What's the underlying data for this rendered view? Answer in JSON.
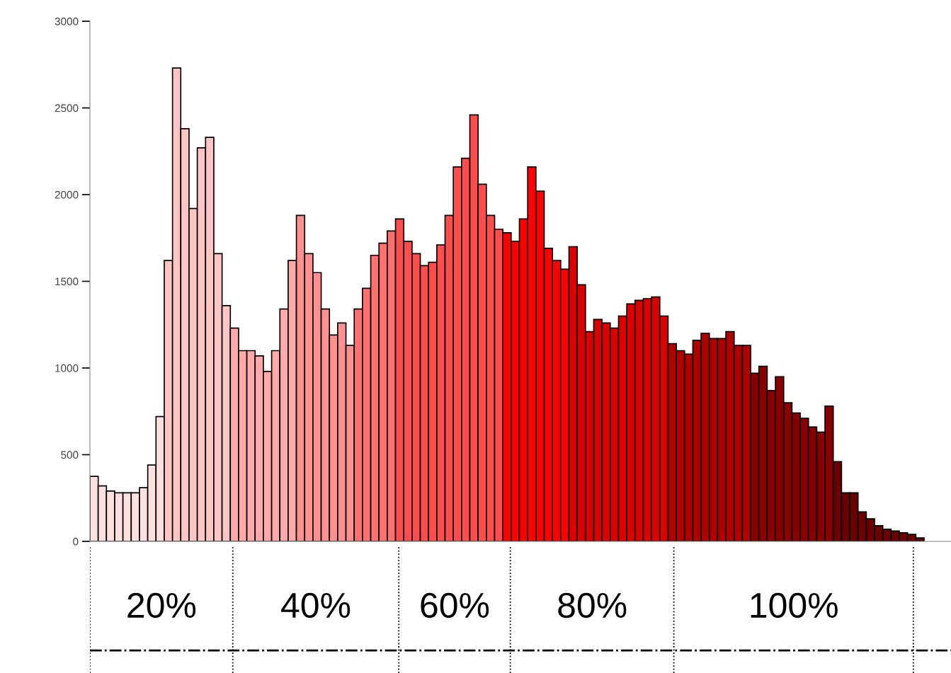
{
  "chart_data": {
    "type": "bar",
    "categories": [
      null,
      null,
      null,
      null,
      null,
      null,
      null,
      null,
      null,
      null,
      null,
      null,
      null,
      null,
      null,
      null,
      null,
      null,
      null,
      null,
      null,
      null,
      null,
      null,
      null,
      null,
      null,
      null,
      null,
      null,
      null,
      null,
      null,
      null,
      null,
      null,
      null,
      null,
      null,
      null,
      null,
      null,
      null,
      null,
      null,
      null,
      null,
      null,
      null,
      null,
      null,
      null,
      null,
      null,
      null,
      null,
      null,
      null,
      null,
      null,
      null,
      null,
      null,
      null,
      null,
      null,
      null,
      null,
      null,
      null,
      null,
      null,
      null,
      null,
      null,
      null,
      null,
      null,
      null,
      null,
      null,
      null,
      null,
      null,
      null,
      null,
      null,
      null,
      null,
      null,
      null,
      null,
      null,
      null,
      null,
      null,
      null,
      null,
      null,
      null,
      null
    ],
    "values": [
      375,
      320,
      290,
      280,
      280,
      280,
      310,
      440,
      720,
      1620,
      2730,
      2380,
      1920,
      2270,
      2330,
      1660,
      1360,
      1230,
      1100,
      1100,
      1070,
      980,
      1100,
      1340,
      1620,
      1880,
      1660,
      1550,
      1340,
      1190,
      1260,
      1130,
      1340,
      1460,
      1650,
      1720,
      1790,
      1860,
      1730,
      1660,
      1590,
      1610,
      1710,
      1880,
      2160,
      2210,
      2460,
      2060,
      1880,
      1800,
      1780,
      1730,
      1860,
      2160,
      2020,
      1690,
      1620,
      1570,
      1700,
      1480,
      1210,
      1280,
      1260,
      1230,
      1300,
      1370,
      1390,
      1400,
      1410,
      1300,
      1140,
      1100,
      1080,
      1160,
      1200,
      1170,
      1170,
      1210,
      1130,
      1130,
      970,
      1010,
      870,
      950,
      800,
      740,
      710,
      660,
      630,
      780,
      460,
      280,
      280,
      170,
      130,
      90,
      70,
      60,
      50,
      40,
      20
    ],
    "colors": [
      "#ffe0e0",
      "#ffe0e0",
      "#ffe0e0",
      "#ffe0e0",
      "#ffe0e0",
      "#ffe0e0",
      "#ffe0e0",
      "#ffe0e0",
      "#ffe0e0",
      "#ffc4c4",
      "#ffc4c4",
      "#ffc4c4",
      "#ffc4c4",
      "#ffc4c4",
      "#ffc4c4",
      "#ffc4c4",
      "#ffc4c4",
      "#ffaaaa",
      "#ffaaaa",
      "#ffaaaa",
      "#ffaaaa",
      "#ffaaaa",
      "#ffaaaa",
      "#ffaaaa",
      "#ffaaaa",
      "#ff9090",
      "#ff9090",
      "#ff9090",
      "#ff9090",
      "#ff9090",
      "#ff9090",
      "#ff9090",
      "#ff7070",
      "#ff7070",
      "#ff7070",
      "#ff7070",
      "#ff7070",
      "#ff4c4c",
      "#ff4c4c",
      "#ff4c4c",
      "#ff4c4c",
      "#ff4c4c",
      "#ff4c4c",
      "#ff4c4c",
      "#ff4c4c",
      "#ff4c4c",
      "#ff4c4c",
      "#ff4c4c",
      "#ff4c4c",
      "#ff4c4c",
      "#ff0000",
      "#ff0000",
      "#ff0000",
      "#ff0000",
      "#ff0000",
      "#ff0000",
      "#ff0000",
      "#ff0000",
      "#dd0000",
      "#dd0000",
      "#dd0000",
      "#dd0000",
      "#dd0000",
      "#dd0000",
      "#dd0000",
      "#dd0000",
      "#dd0000",
      "#dd0000",
      "#dd0000",
      "#dd0000",
      "#b00000",
      "#b00000",
      "#b00000",
      "#b00000",
      "#b00000",
      "#b00000",
      "#b00000",
      "#b00000",
      "#b00000",
      "#b00000",
      "#880000",
      "#880000",
      "#880000",
      "#880000",
      "#880000",
      "#880000",
      "#880000",
      "#880000",
      "#880000",
      "#880000",
      "#6a0000",
      "#6a0000",
      "#6a0000",
      "#6a0000",
      "#6a0000",
      "#6a0000",
      "#6a0000",
      "#6a0000",
      "#6a0000",
      "#6a0000",
      "#6a0000"
    ],
    "ylim": [
      0,
      3000
    ],
    "yticks": [
      0,
      500,
      1000,
      1500,
      2000,
      2500,
      3000
    ],
    "annotations": [
      "20%",
      "40%",
      "60%",
      "80%",
      "100%"
    ]
  }
}
